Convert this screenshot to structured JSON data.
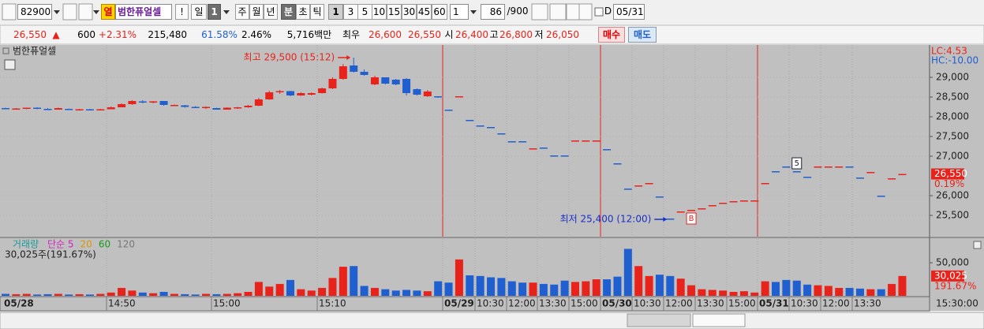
{
  "toolbar": {
    "code": "82900",
    "tag": "열",
    "name": "범한퓨얼셀",
    "alert": "!",
    "periods": [
      "일",
      "주",
      "월",
      "년"
    ],
    "period_count": "1",
    "units": [
      "분",
      "초",
      "틱"
    ],
    "intervals": [
      "1",
      "3",
      "5",
      "10",
      "15",
      "30",
      "45",
      "60"
    ],
    "interval_input": "1",
    "count": "86",
    "count_max": "/900",
    "date_flag": "D",
    "date": "05/31"
  },
  "quote": {
    "price": "26,550",
    "arrow": "▲",
    "change": "600",
    "change_rate": "+2.31%",
    "volume": "215,480",
    "volume_ratio": "61.58%",
    "turnover": "2.46%",
    "amount": "5,716백만",
    "label_best": "최우",
    "ask": "26,600",
    "bid": "26,550",
    "open_label": "시",
    "open": "26,400",
    "high_label": "고",
    "high": "26,800",
    "low_label": "저",
    "low": "26,050",
    "buy": "매수",
    "sell": "매도"
  },
  "chart_data": {
    "type": "candlestick",
    "title": "범한퓨얼셀",
    "lc": "LC:4.53",
    "hc": "HC:-10.00",
    "up_color": "#e8231b",
    "down_color": "#1f5fd0",
    "grid": true,
    "ohlc": [
      [
        28220,
        28230,
        28190,
        28190
      ],
      [
        28190,
        28220,
        28190,
        28210
      ],
      [
        28200,
        28230,
        28190,
        28230
      ],
      [
        28230,
        28240,
        28190,
        28200
      ],
      [
        28200,
        28220,
        28180,
        28180
      ],
      [
        28180,
        28230,
        28180,
        28220
      ],
      [
        28200,
        28210,
        28170,
        28180
      ],
      [
        28180,
        28200,
        28170,
        28190
      ],
      [
        28190,
        28200,
        28170,
        28180
      ],
      [
        28180,
        28200,
        28160,
        28190
      ],
      [
        28190,
        28260,
        28190,
        28240
      ],
      [
        28240,
        28340,
        28240,
        28320
      ],
      [
        28320,
        28420,
        28300,
        28400
      ],
      [
        28390,
        28420,
        28340,
        28380
      ],
      [
        28370,
        28400,
        28340,
        28390
      ],
      [
        28400,
        28400,
        28280,
        28300
      ],
      [
        28280,
        28310,
        28270,
        28300
      ],
      [
        28290,
        28300,
        28230,
        28250
      ],
      [
        28250,
        28270,
        28220,
        28240
      ],
      [
        28230,
        28260,
        28200,
        28250
      ],
      [
        28220,
        28230,
        28180,
        28180
      ],
      [
        28180,
        28240,
        28180,
        28230
      ],
      [
        28220,
        28250,
        28200,
        28240
      ],
      [
        28240,
        28300,
        28230,
        28280
      ],
      [
        28280,
        28480,
        28270,
        28440
      ],
      [
        28440,
        28660,
        28430,
        28620
      ],
      [
        28620,
        28680,
        28580,
        28650
      ],
      [
        28650,
        28660,
        28520,
        28540
      ],
      [
        28540,
        28620,
        28530,
        28600
      ],
      [
        28560,
        28620,
        28540,
        28600
      ],
      [
        28600,
        28740,
        28590,
        28720
      ],
      [
        28720,
        29000,
        28700,
        28960
      ],
      [
        28960,
        29340,
        28940,
        29280
      ],
      [
        29300,
        29500,
        29120,
        29140
      ],
      [
        29140,
        29200,
        29040,
        29060
      ],
      [
        28820,
        29040,
        28800,
        29000
      ],
      [
        29000,
        29000,
        28820,
        28840
      ],
      [
        28940,
        28960,
        28800,
        28820
      ],
      [
        28960,
        28980,
        28540,
        28600
      ],
      [
        28700,
        28720,
        28540,
        28560
      ],
      [
        28520,
        28680,
        28500,
        28640
      ],
      [
        28520,
        28520,
        28480,
        28500
      ],
      [
        28180,
        28180,
        28160,
        28160
      ],
      [
        28500,
        28520,
        28500,
        28520
      ],
      [
        27920,
        27920,
        27900,
        27900
      ],
      [
        27780,
        27780,
        27760,
        27760
      ],
      [
        27740,
        27740,
        27720,
        27720
      ],
      [
        27580,
        27580,
        27560,
        27560
      ],
      [
        27380,
        27380,
        27360,
        27360
      ],
      [
        27380,
        27380,
        27360,
        27360
      ],
      [
        27180,
        27200,
        27180,
        27200
      ],
      [
        27220,
        27220,
        27200,
        27200
      ],
      [
        27020,
        27020,
        27000,
        27000
      ],
      [
        27020,
        27020,
        27000,
        27000
      ],
      [
        27380,
        27400,
        27380,
        27400
      ],
      [
        27380,
        27400,
        27380,
        27400
      ],
      [
        27380,
        27400,
        27380,
        27400
      ],
      [
        27180,
        27180,
        27160,
        27160
      ],
      [
        26820,
        26820,
        26800,
        26800
      ],
      [
        26180,
        26180,
        26160,
        26160
      ],
      [
        26240,
        26260,
        26240,
        26260
      ],
      [
        26300,
        26320,
        26300,
        26320
      ],
      [
        25980,
        25980,
        25960,
        25960
      ],
      [
        25420,
        25420,
        25400,
        25400
      ],
      [
        25580,
        25600,
        25580,
        25600
      ],
      [
        25620,
        25640,
        25620,
        25640
      ],
      [
        25660,
        25680,
        25660,
        25680
      ],
      [
        25740,
        25760,
        25740,
        25760
      ],
      [
        25800,
        25820,
        25800,
        25820
      ],
      [
        25840,
        25860,
        25840,
        25860
      ],
      [
        25860,
        25880,
        25860,
        25880
      ],
      [
        25860,
        25880,
        25860,
        25880
      ],
      [
        26300,
        26320,
        26300,
        26320
      ],
      [
        26620,
        26620,
        26600,
        26600
      ],
      [
        26740,
        26740,
        26720,
        26720
      ],
      [
        26620,
        26620,
        26600,
        26600
      ],
      [
        26480,
        26480,
        26460,
        26460
      ],
      [
        26720,
        26740,
        26720,
        26740
      ],
      [
        26720,
        26740,
        26720,
        26740
      ],
      [
        26720,
        26740,
        26720,
        26740
      ],
      [
        26740,
        26740,
        26720,
        26720
      ],
      [
        26460,
        26460,
        26440,
        26440
      ],
      [
        26580,
        26600,
        26580,
        26600
      ],
      [
        26000,
        26000,
        25980,
        25980
      ],
      [
        26420,
        26440,
        26420,
        26440
      ],
      [
        26530,
        26550,
        26530,
        26550
      ]
    ],
    "ylim": [
      24960,
      29820
    ],
    "yticks": [
      {
        "value": 29000,
        "label": "29,000"
      },
      {
        "value": 28500,
        "label": "28,500"
      },
      {
        "value": 28000,
        "label": "28,000"
      },
      {
        "value": 27500,
        "label": "27,500"
      },
      {
        "value": 27000,
        "label": "27,000"
      },
      {
        "value": 26000,
        "label": "26,000"
      },
      {
        "value": 25500,
        "label": "25,500"
      }
    ],
    "current": {
      "value": 26550,
      "label": "26,550"
    },
    "change_label": "0.19%",
    "annotations": [
      {
        "text": "최고 29,500 (15:12)",
        "value": 29500
      },
      {
        "text": "최저 25,400 (12:00)",
        "value": 25400
      }
    ],
    "markers": [
      "B",
      "5"
    ],
    "volume": {
      "title": "거래량",
      "ma_labels": [
        "단순 5",
        "20",
        "60",
        "120"
      ],
      "summary": "30,025주(191.67%)",
      "values": [
        3000,
        2500,
        3000,
        2000,
        2500,
        3000,
        2000,
        2500,
        2000,
        3000,
        5000,
        12000,
        8000,
        5000,
        4000,
        6000,
        3000,
        2500,
        2000,
        3000,
        2500,
        3000,
        4000,
        6000,
        21000,
        14000,
        18000,
        24000,
        10000,
        8000,
        12000,
        27000,
        44000,
        45000,
        15000,
        12000,
        10000,
        8000,
        9000,
        8000,
        7000,
        22000,
        20000,
        55000,
        31000,
        30000,
        28000,
        27000,
        22000,
        20000,
        20000,
        18000,
        17000,
        23000,
        21000,
        22000,
        25000,
        25000,
        29000,
        71000,
        45000,
        30000,
        32000,
        30000,
        26000,
        16000,
        10000,
        9000,
        8000,
        6000,
        7000,
        5000,
        22000,
        21000,
        24000,
        23000,
        17000,
        16000,
        15000,
        12000,
        12000,
        11000,
        10000,
        10000,
        18000,
        30025
      ],
      "ylim": [
        0,
        87000
      ],
      "yticks": [
        {
          "value": 50000,
          "label": "50,000"
        }
      ],
      "current": {
        "value": 30025,
        "label": "30,025"
      },
      "ratio_label": "191.67%"
    },
    "x_labels": [
      "05/28",
      "14:50",
      "15:00",
      "15:10",
      "05/29",
      "10:30",
      "12:00",
      "13:30",
      "15:00",
      "05/30",
      "10:30",
      "12:00",
      "13:30",
      "15:00",
      "05/31",
      "10:30",
      "12:00",
      "13:30"
    ],
    "axis_time": "15:30:00"
  }
}
